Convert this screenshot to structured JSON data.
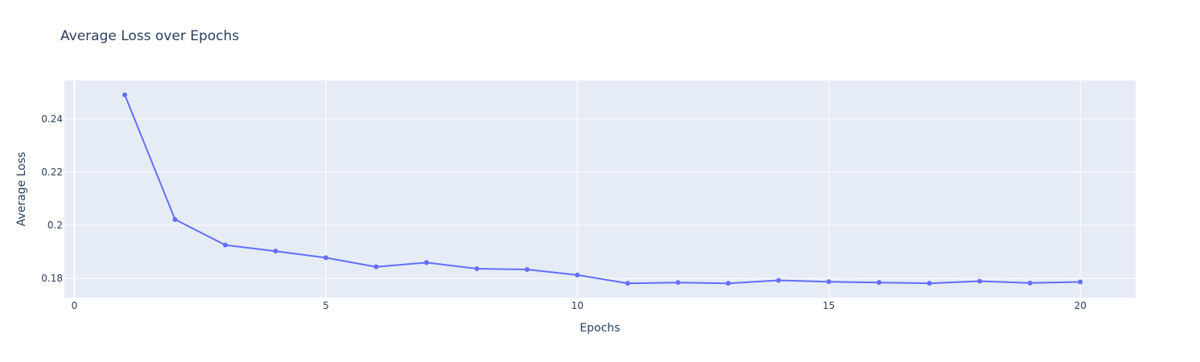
{
  "chart_data": {
    "type": "line",
    "title": "Average Loss over Epochs",
    "xlabel": "Epochs",
    "ylabel": "Average Loss",
    "xlim": [
      -0.2,
      21.1
    ],
    "ylim": [
      0.1728,
      0.2545
    ],
    "x_ticks": [
      0,
      5,
      10,
      15,
      20
    ],
    "x_tick_labels": [
      "0",
      "5",
      "10",
      "15",
      "20"
    ],
    "y_ticks": [
      0.18,
      0.2,
      0.22,
      0.24
    ],
    "y_tick_labels": [
      "0.18",
      "0.2",
      "0.22",
      "0.24"
    ],
    "grid": true,
    "series": [
      {
        "color": "#636efa",
        "x": [
          1,
          2,
          3,
          4,
          5,
          6,
          7,
          8,
          9,
          10,
          11,
          12,
          13,
          14,
          15,
          16,
          17,
          18,
          19,
          20
        ],
        "y": [
          0.2491,
          0.2022,
          0.1926,
          0.1903,
          0.1878,
          0.1844,
          0.186,
          0.1837,
          0.1834,
          0.1813,
          0.1782,
          0.1785,
          0.1782,
          0.1793,
          0.1788,
          0.1785,
          0.1782,
          0.179,
          0.1783,
          0.1787
        ]
      }
    ]
  },
  "colors": {
    "plot_background": "#e5ecf6",
    "grid": "#ffffff",
    "text": "#2a3f5f"
  }
}
